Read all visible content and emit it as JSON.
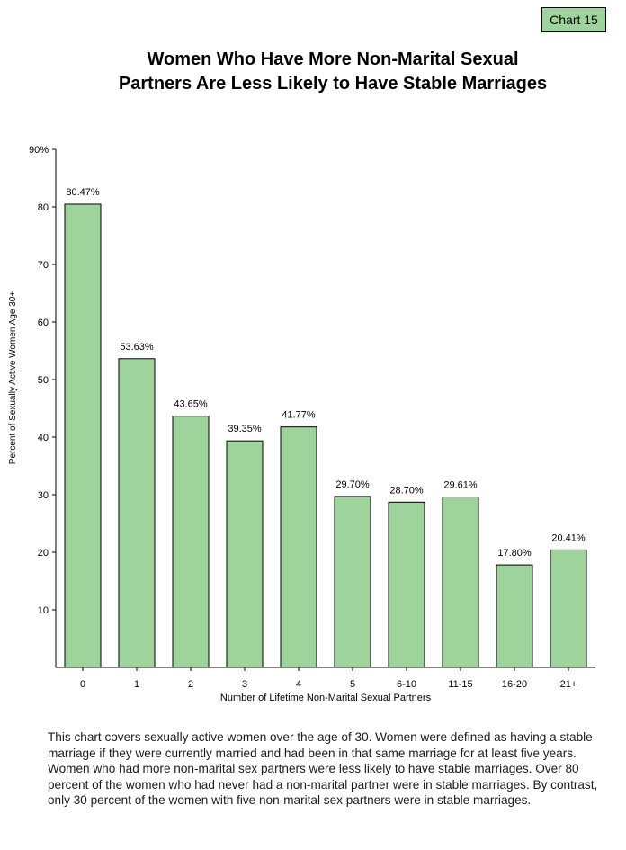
{
  "badge": "Chart 15",
  "title_line1": "Women Who Have More Non-Marital Sexual",
  "title_line2": "Partners Are Less Likely to Have Stable Marriages",
  "caption": "This chart covers sexually active women over the age of 30.  Women were defined as having a stable marriage if they were currently married and had been in that same marriage for at least five years.  Women who had more non-marital sex partners were less likely to have stable marriages.  Over 80 percent of the women who had never had a non-marital partner were in stable marriages.  By contrast, only 30 percent of the women with five non-marital sex partners were in stable marriages.",
  "colors": {
    "bar_fill": "#9ED49B",
    "badge_fill": "#9ED49B",
    "axis": "#000000",
    "text": "#000000"
  },
  "chart_data": {
    "type": "bar",
    "title": "Women Who Have More Non-Marital Sexual Partners Are Less Likely to Have Stable Marriages",
    "xlabel": "Number of Lifetime Non-Marital Sexual Partners",
    "ylabel": "Percent of Sexually Active Women Age 30+",
    "categories": [
      "0",
      "1",
      "2",
      "3",
      "4",
      "5",
      "6-10",
      "11-15",
      "16-20",
      "21+"
    ],
    "values": [
      80.47,
      53.63,
      43.65,
      39.35,
      41.77,
      29.7,
      28.7,
      29.61,
      17.8,
      20.41
    ],
    "value_labels": [
      "80.47%",
      "53.63%",
      "43.65%",
      "39.35%",
      "41.77%",
      "29.70%",
      "28.70%",
      "29.61%",
      "17.80%",
      "20.41%"
    ],
    "ylim": [
      0,
      90
    ],
    "yticks": [
      10,
      20,
      30,
      40,
      50,
      60,
      70,
      80,
      90
    ],
    "ytick_labels": [
      "10",
      "20",
      "30",
      "40",
      "50",
      "60",
      "70",
      "80",
      "90%"
    ],
    "grid": false,
    "legend": "none"
  }
}
